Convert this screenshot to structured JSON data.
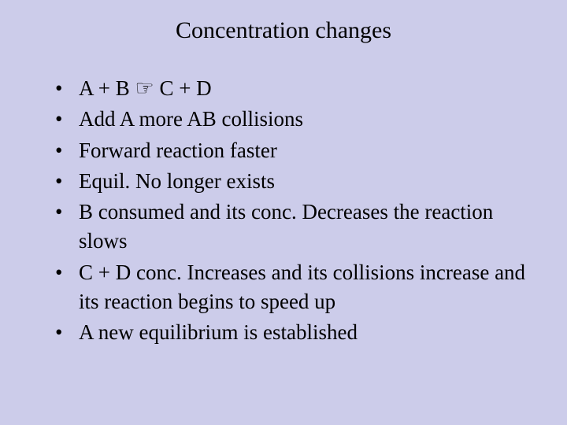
{
  "slide": {
    "title": "Concentration changes",
    "background_color": "#ccccea",
    "text_color": "#000000",
    "title_fontsize": 30,
    "body_fontsize": 27,
    "font_family": "Times New Roman",
    "bullets": [
      "A + B  ☞    C + D",
      "Add A  more AB collisions",
      "Forward reaction faster",
      "Equil. No longer exists",
      "B consumed and its conc. Decreases the reaction slows",
      "C + D conc. Increases and its collisions increase and its reaction begins to speed up",
      "A new equilibrium is established"
    ]
  }
}
